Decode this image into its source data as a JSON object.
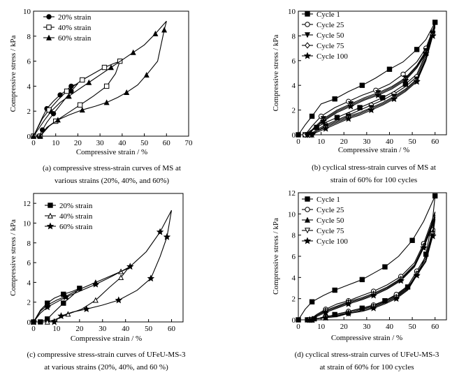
{
  "panels": [
    {
      "caption_lines": [
        "(a) compressive stress-strain curves of MS at",
        "various strains (20%, 40%, and 60%)"
      ],
      "chart_data": {
        "type": "line",
        "xlabel": "Compressive strain / %",
        "ylabel": "Compressive stress / kPa",
        "xlim": [
          0,
          70
        ],
        "ylim": [
          0,
          10
        ],
        "xticks": [
          0,
          10,
          20,
          30,
          40,
          50,
          60,
          70
        ],
        "yticks": [
          0,
          2,
          4,
          6,
          8,
          10
        ],
        "legend_position": "top-left",
        "series": [
          {
            "name": "20% strain",
            "marker": "circle-filled",
            "x": [
              0,
              4,
              6,
              9,
              12,
              15,
              17,
              20,
              17,
              13,
              9,
              6,
              4,
              2.5
            ],
            "y": [
              0,
              1.5,
              2.2,
              2.8,
              3.3,
              3.7,
              4.0,
              4.2,
              3.6,
              2.7,
              1.8,
              1.1,
              0.5,
              0
            ]
          },
          {
            "name": "40% strain",
            "marker": "square-open",
            "x": [
              0,
              4,
              7,
              11,
              15,
              18,
              22,
              27,
              32,
              36,
              39,
              37,
              33,
              27,
              21,
              15,
              10,
              6,
              3
            ],
            "y": [
              0,
              1.4,
              2.1,
              2.9,
              3.6,
              4.0,
              4.5,
              5.0,
              5.5,
              5.8,
              6.0,
              5.0,
              4.0,
              3.2,
              2.5,
              1.8,
              1.2,
              0.7,
              0
            ]
          },
          {
            "name": "60% strain",
            "marker": "triangle-filled",
            "x": [
              0,
              5,
              8,
              12,
              16,
              20,
              25,
              30,
              35,
              40,
              45,
              50,
              55,
              60,
              59,
              56,
              51,
              47,
              42,
              38,
              33,
              28,
              22,
              16,
              11,
              7,
              3
            ],
            "y": [
              0,
              1.3,
              2.0,
              2.7,
              3.2,
              3.7,
              4.3,
              4.9,
              5.5,
              6.1,
              6.7,
              7.3,
              8.2,
              9.2,
              8.5,
              6.0,
              4.9,
              4.1,
              3.5,
              3.1,
              2.7,
              2.4,
              2.1,
              1.7,
              1.3,
              0.8,
              0
            ]
          }
        ]
      }
    },
    {
      "caption_lines": [
        "(b) cyclical stress-strain curves of MS at",
        "strain of 60% for 100 cycles"
      ],
      "chart_data": {
        "type": "line",
        "xlabel": "Compressive strain / %",
        "ylabel": "Compressive stress / kPa",
        "xlim": [
          0,
          65
        ],
        "ylim": [
          0,
          10
        ],
        "xticks": [
          0,
          10,
          20,
          30,
          40,
          50,
          60
        ],
        "yticks": [
          0,
          2,
          4,
          6,
          8,
          10
        ],
        "legend_position": "top-left",
        "series": [
          {
            "name": "Cycle 1",
            "marker": "square-filled",
            "x": [
              0,
              3,
              6,
              10,
              16,
              22,
              28,
              34,
              40,
              46,
              52,
              56,
              60,
              59,
              56,
              52,
              47,
              42,
              37,
              32,
              27,
              22,
              17,
              12,
              8,
              5,
              3
            ],
            "y": [
              0,
              0.8,
              1.5,
              2.5,
              2.9,
              3.5,
              4.0,
              4.6,
              5.3,
              5.9,
              6.9,
              7.7,
              9.1,
              8.4,
              6.6,
              4.9,
              4.1,
              3.5,
              3.0,
              2.6,
              2.2,
              1.8,
              1.4,
              1.0,
              0.6,
              0.3,
              0
            ]
          },
          {
            "name": "Cycle 25",
            "marker": "circle-open",
            "x": [
              3,
              6,
              10,
              16,
              22,
              28,
              34,
              40,
              46,
              52,
              56,
              60,
              59,
              56,
              52,
              47,
              42,
              37,
              32,
              27,
              22,
              17,
              12,
              8,
              5
            ],
            "y": [
              0,
              0.7,
              1.5,
              2.2,
              2.7,
              3.2,
              3.6,
              4.1,
              4.9,
              5.9,
              7.0,
              9.0,
              8.3,
              6.4,
              4.7,
              3.9,
              3.3,
              2.8,
              2.4,
              2.0,
              1.6,
              1.2,
              0.8,
              0.4,
              0
            ]
          },
          {
            "name": "Cycle 50",
            "marker": "triangle-down-filled",
            "x": [
              4,
              7,
              11,
              17,
              23,
              29,
              35,
              41,
              47,
              52,
              56,
              60,
              59,
              56,
              52,
              47,
              42,
              37,
              32,
              27,
              22,
              17,
              12,
              8,
              6
            ],
            "y": [
              0,
              0.6,
              1.3,
              2.0,
              2.5,
              3.0,
              3.4,
              3.9,
              4.6,
              5.6,
              6.8,
              8.9,
              8.2,
              6.2,
              4.5,
              3.7,
              3.1,
              2.6,
              2.2,
              1.8,
              1.5,
              1.1,
              0.7,
              0.3,
              0
            ]
          },
          {
            "name": "Cycle 75",
            "marker": "diamond-open",
            "x": [
              4,
              7,
              11,
              17,
              23,
              29,
              35,
              41,
              47,
              52,
              56,
              60,
              59,
              56,
              52,
              47,
              42,
              37,
              32,
              27,
              22,
              17,
              12,
              8,
              6
            ],
            "y": [
              0,
              0.5,
              1.2,
              1.9,
              2.4,
              2.9,
              3.3,
              3.8,
              4.5,
              5.5,
              6.7,
              8.8,
              8.1,
              6.1,
              4.4,
              3.6,
              3.0,
              2.5,
              2.1,
              1.7,
              1.4,
              1.0,
              0.6,
              0.3,
              0
            ]
          },
          {
            "name": "Cycle 100",
            "marker": "star-filled",
            "x": [
              4,
              7,
              11,
              17,
              23,
              29,
              35,
              41,
              47,
              52,
              56,
              60,
              59,
              56,
              52,
              47,
              42,
              37,
              32,
              27,
              22,
              17,
              12,
              8,
              6
            ],
            "y": [
              0,
              0.5,
              1.1,
              1.8,
              2.3,
              2.8,
              3.2,
              3.7,
              4.4,
              5.4,
              6.6,
              8.7,
              8.0,
              6.0,
              4.3,
              3.5,
              2.9,
              2.4,
              2.0,
              1.6,
              1.3,
              0.9,
              0.5,
              0.2,
              0
            ]
          }
        ]
      }
    },
    {
      "caption_lines": [
        "(c) compressive stress-strain curves of UFeU-MS-3",
        "at various strains (20%, 40%, and 60 %)"
      ],
      "chart_data": {
        "type": "line",
        "xlabel": "Compressive strain / %",
        "ylabel": "Compressive stress / kPa",
        "xlim": [
          0,
          65
        ],
        "ylim": [
          0,
          13
        ],
        "xticks": [
          0,
          10,
          20,
          30,
          40,
          50,
          60
        ],
        "yticks": [
          0,
          2,
          4,
          6,
          8,
          10,
          12
        ],
        "legend_position": "top-left",
        "series": [
          {
            "name": "20% strain",
            "marker": "square-filled",
            "x": [
              0,
              3,
              6,
              9,
              13,
              17,
              20,
              17,
              13,
              9,
              6,
              3
            ],
            "y": [
              0,
              1.2,
              1.9,
              2.4,
              2.8,
              3.1,
              3.4,
              2.7,
              1.9,
              1.0,
              0.3,
              0
            ]
          },
          {
            "name": "40% strain",
            "marker": "triangle-open",
            "x": [
              0,
              3,
              6,
              10,
              14,
              20,
              27,
              33,
              38,
              41,
              38,
              33,
              27,
              21,
              15,
              10,
              6
            ],
            "y": [
              0,
              1.1,
              1.7,
              2.2,
              2.6,
              3.3,
              4.0,
              4.6,
              5.1,
              5.4,
              4.5,
              3.5,
              2.2,
              1.3,
              0.8,
              0.3,
              0
            ]
          },
          {
            "name": "60% strain",
            "marker": "star-filled",
            "x": [
              0,
              3,
              6,
              10,
              14,
              20,
              27,
              34,
              42,
              49,
              55,
              60,
              58,
              55,
              51,
              45,
              37,
              30,
              23,
              17,
              12,
              9
            ],
            "y": [
              0,
              0.9,
              1.5,
              2.0,
              2.5,
              3.1,
              3.8,
              4.6,
              5.6,
              7.1,
              9.1,
              11.3,
              8.6,
              6.6,
              4.4,
              3.2,
              2.2,
              1.7,
              1.3,
              1.0,
              0.6,
              0
            ]
          }
        ]
      }
    },
    {
      "caption_lines": [
        "(d) cyclical stress-strain curves of UFeU-MS-3",
        "at strain of 60% for 100 cycles"
      ],
      "chart_data": {
        "type": "line",
        "xlabel": "Compressive strain / %",
        "ylabel": "Compressive stress / kPa",
        "xlim": [
          0,
          65
        ],
        "ylim": [
          0,
          12
        ],
        "xticks": [
          0,
          10,
          20,
          30,
          40,
          50,
          60
        ],
        "yticks": [
          0,
          2,
          4,
          6,
          8,
          10,
          12
        ],
        "legend_position": "top-left",
        "series": [
          {
            "name": "Cycle 1",
            "marker": "square-filled",
            "x": [
              0,
              3,
              6,
              11,
              16,
              22,
              28,
              33,
              38,
              44,
              50,
              55,
              60,
              59,
              56,
              53,
              48,
              43,
              38,
              33,
              28,
              22,
              16,
              11,
              7,
              4
            ],
            "y": [
              0,
              1.0,
              1.7,
              2.3,
              2.8,
              3.3,
              3.8,
              4.4,
              5.0,
              6.0,
              7.5,
              9.3,
              11.7,
              9.6,
              6.2,
              4.5,
              3.1,
              2.3,
              1.8,
              1.4,
              1.1,
              0.8,
              0.5,
              0.2,
              0.1,
              0
            ]
          },
          {
            "name": "Cycle 25",
            "marker": "circle-open",
            "x": [
              5,
              8,
              12,
              17,
              22,
              28,
              33,
              39,
              45,
              51,
              55,
              60,
              59,
              56,
              52,
              48,
              43,
              38,
              33,
              28,
              22,
              17,
              12,
              8,
              6
            ],
            "y": [
              0,
              0.5,
              1.0,
              1.5,
              1.8,
              2.3,
              2.7,
              3.3,
              4.1,
              5.4,
              7.2,
              10.2,
              8.5,
              6.0,
              4.6,
              3.2,
              2.4,
              1.8,
              1.4,
              1.1,
              0.8,
              0.5,
              0.3,
              0.1,
              0
            ]
          },
          {
            "name": "Cycle 50",
            "marker": "triangle-filled",
            "x": [
              5,
              8,
              12,
              17,
              22,
              28,
              33,
              39,
              45,
              51,
              55,
              60,
              59,
              56,
              52,
              48,
              43,
              38,
              33,
              28,
              22,
              17,
              12,
              8,
              6
            ],
            "y": [
              0,
              0.4,
              0.9,
              1.3,
              1.7,
              2.1,
              2.5,
              3.1,
              3.9,
              5.2,
              7.0,
              9.9,
              8.3,
              5.8,
              4.4,
              3.0,
              2.2,
              1.7,
              1.3,
              1.0,
              0.7,
              0.4,
              0.2,
              0.1,
              0
            ]
          },
          {
            "name": "Cycle 75",
            "marker": "triangle-down-open",
            "x": [
              5,
              8,
              12,
              17,
              22,
              28,
              33,
              39,
              45,
              51,
              55,
              60,
              59,
              56,
              52,
              48,
              43,
              38,
              33,
              28,
              22,
              17,
              12,
              8,
              6
            ],
            "y": [
              0,
              0.4,
              0.8,
              1.2,
              1.6,
              2.0,
              2.4,
              3.0,
              3.8,
              5.1,
              6.9,
              9.7,
              8.1,
              5.6,
              4.3,
              2.9,
              2.1,
              1.6,
              1.2,
              0.9,
              0.6,
              0.4,
              0.2,
              0.1,
              0
            ]
          },
          {
            "name": "Cycle 100",
            "marker": "star-filled",
            "x": [
              5,
              8,
              12,
              17,
              22,
              28,
              33,
              39,
              45,
              51,
              55,
              60,
              59,
              56,
              52,
              48,
              43,
              38,
              33,
              28,
              22,
              17,
              12,
              8,
              6
            ],
            "y": [
              0,
              0.3,
              0.7,
              1.1,
              1.5,
              1.9,
              2.3,
              2.9,
              3.7,
              5.0,
              6.8,
              9.5,
              7.9,
              5.5,
              4.2,
              2.8,
              2.0,
              1.5,
              1.1,
              0.8,
              0.6,
              0.3,
              0.2,
              0.1,
              0
            ]
          }
        ]
      }
    }
  ]
}
